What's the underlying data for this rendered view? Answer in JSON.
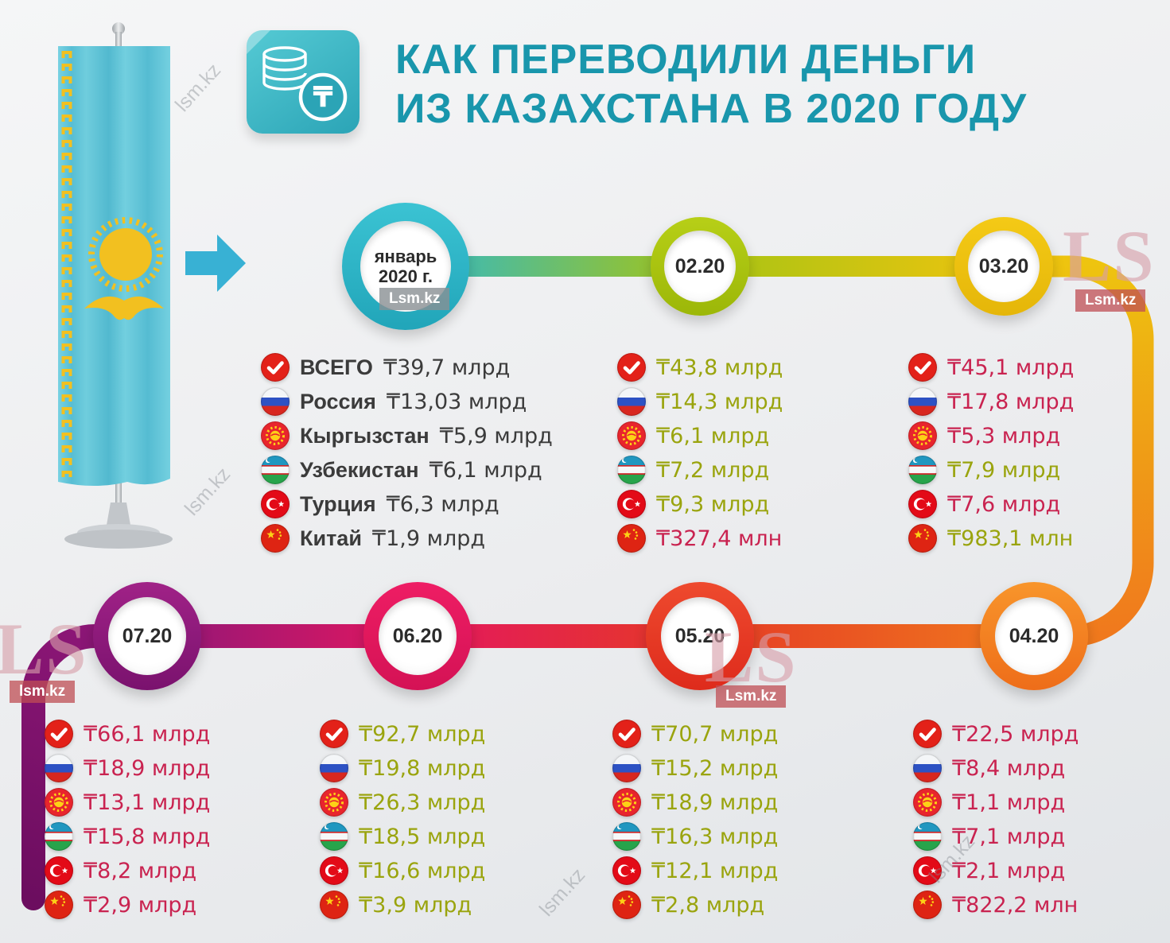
{
  "title": {
    "line1": "КАК ПЕРЕВОДИЛИ ДЕНЬГИ",
    "line2": "ИЗ КАЗАХСТАНА В 2020 ГОДУ"
  },
  "title_icon": {
    "symbol": "₸"
  },
  "watermarks": {
    "ls": "LS",
    "badge": "Lsm.kz",
    "small": "lsm.kz"
  },
  "colors": {
    "accent_teal": "#1996ac",
    "value_up_green": "#9aa40e",
    "value_down_red": "#c92350",
    "text_dark": "#3b3b3b"
  },
  "legend": {
    "countries": [
      "ВСЕГО",
      "Россия",
      "Кыргызстан",
      "Узбекистан",
      "Турция",
      "Китай"
    ]
  },
  "months": [
    {
      "label_lines": [
        "январь",
        "2020 г."
      ],
      "ring": [
        "#3bc3d3",
        "#21a5b9"
      ],
      "rows": [
        {
          "icon": "check",
          "country": "ВСЕГО",
          "value": "₸39,7 млрд",
          "tone": "dark"
        },
        {
          "icon": "russia",
          "country": "Россия",
          "value": "₸13,03 млрд",
          "tone": "dark"
        },
        {
          "icon": "kyrgyzstan",
          "country": "Кыргызстан",
          "value": "₸5,9 млрд",
          "tone": "dark"
        },
        {
          "icon": "uzbekistan",
          "country": "Узбекистан",
          "value": "₸6,1 млрд",
          "tone": "dark"
        },
        {
          "icon": "turkey",
          "country": "Турция",
          "value": "₸6,3 млрд",
          "tone": "dark"
        },
        {
          "icon": "china",
          "country": "Китай",
          "value": "₸1,9 млрд",
          "tone": "dark"
        }
      ]
    },
    {
      "label_lines": [
        "02.20"
      ],
      "ring": [
        "#b7cf17",
        "#9cb708"
      ],
      "rows": [
        {
          "icon": "check",
          "value": "₸43,8 млрд",
          "tone": "green"
        },
        {
          "icon": "russia",
          "value": "₸14,3 млрд",
          "tone": "green"
        },
        {
          "icon": "kyrgyzstan",
          "value": "₸6,1 млрд",
          "tone": "green"
        },
        {
          "icon": "uzbekistan",
          "value": "₸7,2 млрд",
          "tone": "green"
        },
        {
          "icon": "turkey",
          "value": "₸9,3 млрд",
          "tone": "green"
        },
        {
          "icon": "china",
          "value": "₸327,4 млн",
          "tone": "red"
        }
      ]
    },
    {
      "label_lines": [
        "03.20"
      ],
      "ring": [
        "#f4ca16",
        "#e5b609"
      ],
      "rows": [
        {
          "icon": "check",
          "value": "₸45,1 млрд",
          "tone": "red"
        },
        {
          "icon": "russia",
          "value": "₸17,8 млрд",
          "tone": "red"
        },
        {
          "icon": "kyrgyzstan",
          "value": "₸5,3 млрд",
          "tone": "red"
        },
        {
          "icon": "uzbekistan",
          "value": "₸7,9 млрд",
          "tone": "green"
        },
        {
          "icon": "turkey",
          "value": "₸7,6 млрд",
          "tone": "red"
        },
        {
          "icon": "china",
          "value": "₸983,1 млн",
          "tone": "green"
        }
      ]
    },
    {
      "label_lines": [
        "04.20"
      ],
      "ring": [
        "#f8952b",
        "#ee6d19"
      ],
      "rows": [
        {
          "icon": "check",
          "value": "₸22,5 млрд",
          "tone": "red"
        },
        {
          "icon": "russia",
          "value": "₸8,4 млрд",
          "tone": "red"
        },
        {
          "icon": "kyrgyzstan",
          "value": "₸1,1 млрд",
          "tone": "red"
        },
        {
          "icon": "uzbekistan",
          "value": "₸7,1 млрд",
          "tone": "red"
        },
        {
          "icon": "turkey",
          "value": "₸2,1 млрд",
          "tone": "red"
        },
        {
          "icon": "china",
          "value": "₸822,2 млн",
          "tone": "red"
        }
      ]
    },
    {
      "label_lines": [
        "05.20"
      ],
      "ring": [
        "#ee4a2e",
        "#de2b1c"
      ],
      "rows": [
        {
          "icon": "check",
          "value": "₸70,7 млрд",
          "tone": "green"
        },
        {
          "icon": "russia",
          "value": "₸15,2 млрд",
          "tone": "green"
        },
        {
          "icon": "kyrgyzstan",
          "value": "₸18,9 млрд",
          "tone": "green"
        },
        {
          "icon": "uzbekistan",
          "value": "₸16,3 млрд",
          "tone": "green"
        },
        {
          "icon": "turkey",
          "value": "₸12,1 млрд",
          "tone": "green"
        },
        {
          "icon": "china",
          "value": "₸2,8 млрд",
          "tone": "green"
        }
      ]
    },
    {
      "label_lines": [
        "06.20"
      ],
      "ring": [
        "#ee1d64",
        "#d41255"
      ],
      "rows": [
        {
          "icon": "check",
          "value": "₸92,7 млрд",
          "tone": "green"
        },
        {
          "icon": "russia",
          "value": "₸19,8 млрд",
          "tone": "green"
        },
        {
          "icon": "kyrgyzstan",
          "value": "₸26,3 млрд",
          "tone": "green"
        },
        {
          "icon": "uzbekistan",
          "value": "₸18,5 млрд",
          "tone": "green"
        },
        {
          "icon": "turkey",
          "value": "₸16,6 млрд",
          "tone": "green"
        },
        {
          "icon": "china",
          "value": "₸3,9 млрд",
          "tone": "green"
        }
      ]
    },
    {
      "label_lines": [
        "07.20"
      ],
      "ring": [
        "#a02287",
        "#7a126e"
      ],
      "rows": [
        {
          "icon": "check",
          "value": "₸66,1 млрд",
          "tone": "red"
        },
        {
          "icon": "russia",
          "value": "₸18,9 млрд",
          "tone": "red"
        },
        {
          "icon": "kyrgyzstan",
          "value": "₸13,1 млрд",
          "tone": "red"
        },
        {
          "icon": "uzbekistan",
          "value": "₸15,8 млрд",
          "tone": "red"
        },
        {
          "icon": "turkey",
          "value": "₸8,2 млрд",
          "tone": "red"
        },
        {
          "icon": "china",
          "value": "₸2,9 млрд",
          "tone": "red"
        }
      ]
    }
  ],
  "chart_data": {
    "type": "table",
    "title": "КАК ПЕРЕВОДИЛИ ДЕНЬГИ ИЗ КАЗАХСТАНА В 2020 ГОДУ",
    "unit": "млрд тенге",
    "categories": [
      "январь 2020 г.",
      "02.20",
      "03.20",
      "04.20",
      "05.20",
      "06.20",
      "07.20"
    ],
    "series": [
      {
        "name": "ВСЕГО",
        "values": [
          39.7,
          43.8,
          45.1,
          22.5,
          70.7,
          92.7,
          66.1
        ]
      },
      {
        "name": "Россия",
        "values": [
          13.03,
          14.3,
          17.8,
          8.4,
          15.2,
          19.8,
          18.9
        ]
      },
      {
        "name": "Кыргызстан",
        "values": [
          5.9,
          6.1,
          5.3,
          1.1,
          18.9,
          26.3,
          13.1
        ]
      },
      {
        "name": "Узбекистан",
        "values": [
          6.1,
          7.2,
          7.9,
          7.1,
          16.3,
          18.5,
          15.8
        ]
      },
      {
        "name": "Турция",
        "values": [
          6.3,
          9.3,
          7.6,
          2.1,
          12.1,
          16.6,
          8.2
        ]
      },
      {
        "name": "Китай",
        "values": [
          1.9,
          0.3274,
          0.9831,
          0.8222,
          2.8,
          3.9,
          2.9
        ]
      }
    ]
  }
}
